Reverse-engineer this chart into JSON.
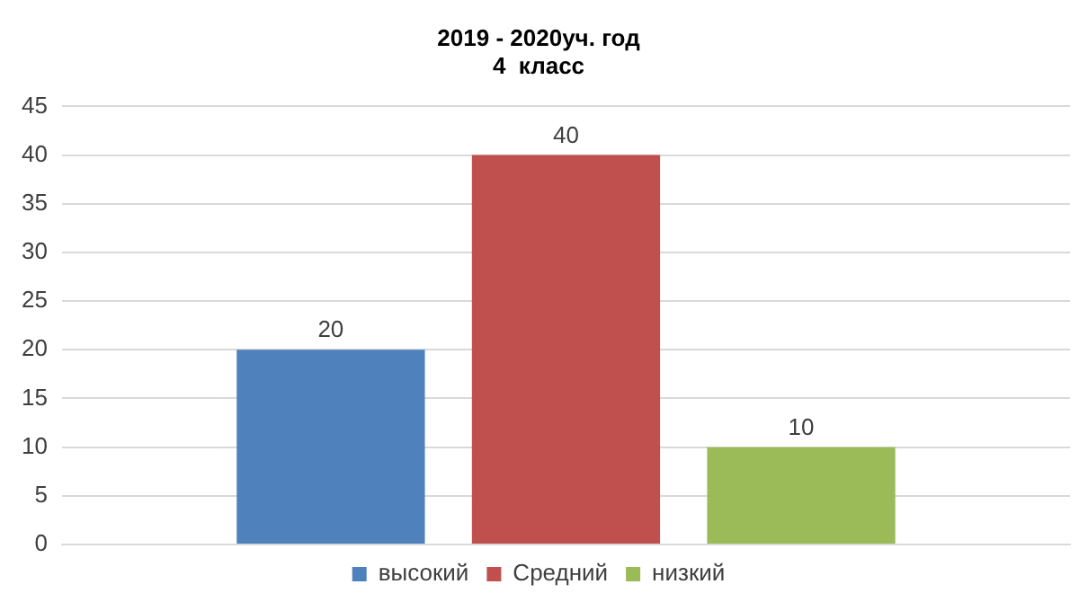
{
  "chart_data": {
    "type": "bar",
    "title": "2019 - 2020уч. год\n4  класс",
    "categories": [
      null
    ],
    "series": [
      {
        "name": "высокий",
        "color": "#4f81bd",
        "values": [
          20
        ]
      },
      {
        "name": "Средний",
        "color": "#c0504d",
        "values": [
          40
        ]
      },
      {
        "name": "низкий",
        "color": "#9bbb59",
        "values": [
          10
        ]
      }
    ],
    "ylim": [
      0,
      45
    ],
    "yticks": [
      0,
      5,
      10,
      15,
      20,
      25,
      30,
      35,
      40,
      45
    ],
    "grid": "y",
    "legend": "bottom",
    "data_labels": true,
    "tick_labels": "y"
  }
}
